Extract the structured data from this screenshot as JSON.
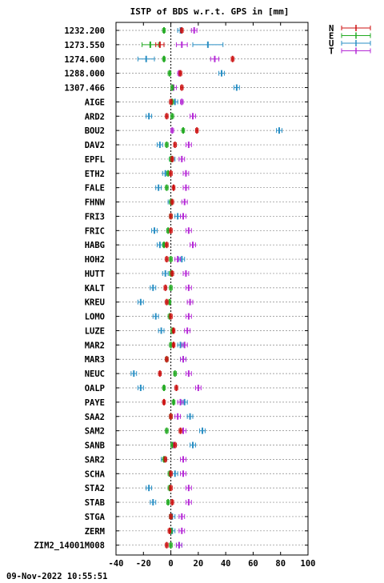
{
  "chart_data": {
    "type": "scatter",
    "title": "ISTP of BDS w.r.t. GPS in [mm]",
    "xlim": [
      -40,
      100
    ],
    "xticks": [
      -40,
      -20,
      0,
      20,
      40,
      60,
      80,
      100
    ],
    "grid": true,
    "legend_position": "top-right",
    "timestamp": "09-Nov-2022 10:55:51",
    "series": [
      {
        "name": "N",
        "color": "#cc1111"
      },
      {
        "name": "E",
        "color": "#22aa22"
      },
      {
        "name": "U",
        "color": "#2a8fc4"
      },
      {
        "name": "T",
        "color": "#b52ad6"
      }
    ],
    "categories": [
      "1232.200",
      "1273.550",
      "1274.600",
      "1288.000",
      "1307.466",
      "AIGE",
      "ARD2",
      "BOU2",
      "DAV2",
      "EPFL",
      "ETH2",
      "FALE",
      "FHNW",
      "FRI3",
      "FRIC",
      "HABG",
      "HOH2",
      "HUTT",
      "KALT",
      "KREU",
      "LOMO",
      "LUZE",
      "MAR2",
      "MAR3",
      "NEUC",
      "OALP",
      "PAYE",
      "SAA2",
      "SAM2",
      "SANB",
      "SAR2",
      "SCHA",
      "STA2",
      "STAB",
      "STGA",
      "ZERM",
      "ZIM2_14001M008"
    ],
    "rows": [
      {
        "N": [
          8,
          1
        ],
        "E": [
          -5,
          1
        ],
        "U": [
          7,
          2
        ],
        "T": [
          17,
          2
        ]
      },
      {
        "N": [
          -8,
          3
        ],
        "E": [
          -15,
          6
        ],
        "U": [
          27,
          11
        ],
        "T": [
          8,
          4
        ]
      },
      {
        "N": [
          45,
          1
        ],
        "E": [
          -5,
          1
        ],
        "U": [
          -18,
          6
        ],
        "T": [
          32,
          3
        ]
      },
      {
        "N": [
          7,
          1
        ],
        "E": [
          -1,
          1
        ],
        "U": [
          37,
          2
        ],
        "T": [
          6,
          1
        ]
      },
      {
        "N": [
          8,
          1
        ],
        "E": [
          1,
          1
        ],
        "U": [
          48,
          2
        ],
        "T": [
          2,
          2
        ]
      },
      {
        "N": [
          0,
          1
        ],
        "E": [
          1,
          1
        ],
        "U": [
          3,
          2
        ],
        "T": [
          8,
          1
        ]
      },
      {
        "N": [
          -3,
          1
        ],
        "E": [
          1,
          1
        ],
        "U": [
          -16,
          2
        ],
        "T": [
          16,
          2
        ]
      },
      {
        "N": [
          19,
          1
        ],
        "E": [
          9,
          1
        ],
        "U": [
          79,
          2
        ],
        "T": [
          1,
          1
        ]
      },
      {
        "N": [
          3,
          1
        ],
        "E": [
          -3,
          1
        ],
        "U": [
          -8,
          2
        ],
        "T": [
          13,
          2
        ]
      },
      {
        "N": [
          1,
          1
        ],
        "E": [
          0,
          1
        ],
        "U": [
          1,
          2
        ],
        "T": [
          8,
          2
        ]
      },
      {
        "N": [
          0,
          1
        ],
        "E": [
          -2,
          1
        ],
        "U": [
          -4,
          2
        ],
        "T": [
          11,
          2
        ]
      },
      {
        "N": [
          2,
          1
        ],
        "E": [
          -3,
          1
        ],
        "U": [
          -9,
          2
        ],
        "T": [
          11,
          2
        ]
      },
      {
        "N": [
          1,
          1
        ],
        "E": [
          0,
          1
        ],
        "U": [
          0,
          2
        ],
        "T": [
          10,
          2
        ]
      },
      {
        "N": [
          0,
          1
        ],
        "E": [
          0,
          1
        ],
        "U": [
          5,
          2
        ],
        "T": [
          9,
          2
        ]
      },
      {
        "N": [
          0,
          1
        ],
        "E": [
          -2,
          1
        ],
        "U": [
          -12,
          2
        ],
        "T": [
          13,
          2
        ]
      },
      {
        "N": [
          -3,
          1
        ],
        "E": [
          -5,
          1
        ],
        "U": [
          -8,
          2
        ],
        "T": [
          16,
          2
        ]
      },
      {
        "N": [
          -3,
          1
        ],
        "E": [
          0,
          1
        ],
        "U": [
          8,
          2
        ],
        "T": [
          5,
          2
        ]
      },
      {
        "N": [
          1,
          1
        ],
        "E": [
          0,
          1
        ],
        "U": [
          -4,
          2
        ],
        "T": [
          11,
          2
        ]
      },
      {
        "N": [
          -4,
          1
        ],
        "E": [
          0,
          1
        ],
        "U": [
          -13,
          2
        ],
        "T": [
          13,
          2
        ]
      },
      {
        "N": [
          -3,
          1
        ],
        "E": [
          -1,
          1
        ],
        "U": [
          -22,
          2
        ],
        "T": [
          14,
          2
        ]
      },
      {
        "N": [
          0,
          1
        ],
        "E": [
          -1,
          1
        ],
        "U": [
          -11,
          2
        ],
        "T": [
          13,
          2
        ]
      },
      {
        "N": [
          2,
          1
        ],
        "E": [
          1,
          1
        ],
        "U": [
          -7,
          2
        ],
        "T": [
          12,
          2
        ]
      },
      {
        "N": [
          2,
          1
        ],
        "E": [
          0,
          1
        ],
        "U": [
          7,
          2
        ],
        "T": [
          10,
          2
        ]
      },
      {
        "N": [
          -3,
          1
        ],
        "E": [
          -3,
          1
        ],
        "U": [
          9,
          2
        ],
        "T": [
          9,
          2
        ]
      },
      {
        "N": [
          -8,
          1
        ],
        "E": [
          3,
          1
        ],
        "U": [
          -27,
          2
        ],
        "T": [
          13,
          2
        ]
      },
      {
        "N": [
          4,
          1
        ],
        "E": [
          -5,
          1
        ],
        "U": [
          -22,
          2
        ],
        "T": [
          20,
          2
        ]
      },
      {
        "N": [
          -5,
          1
        ],
        "E": [
          2,
          1
        ],
        "U": [
          10,
          2
        ],
        "T": [
          7,
          2
        ]
      },
      {
        "N": [
          0,
          1
        ],
        "E": [
          0,
          1
        ],
        "U": [
          14,
          2
        ],
        "T": [
          5,
          2
        ]
      },
      {
        "N": [
          7,
          1
        ],
        "E": [
          -3,
          1
        ],
        "U": [
          23,
          2
        ],
        "T": [
          9,
          2
        ]
      },
      {
        "N": [
          3,
          1
        ],
        "E": [
          1,
          1
        ],
        "U": [
          16,
          2
        ],
        "T": [
          2,
          2
        ]
      },
      {
        "N": [
          -4,
          1
        ],
        "E": [
          -5,
          1
        ],
        "U": [
          -5,
          2
        ],
        "T": [
          9,
          2
        ]
      },
      {
        "N": [
          0,
          1
        ],
        "E": [
          -1,
          1
        ],
        "U": [
          3,
          2
        ],
        "T": [
          9,
          2
        ]
      },
      {
        "N": [
          0,
          1
        ],
        "E": [
          -1,
          1
        ],
        "U": [
          -16,
          2
        ],
        "T": [
          13,
          2
        ]
      },
      {
        "N": [
          1,
          1
        ],
        "E": [
          -2,
          1
        ],
        "U": [
          -13,
          2
        ],
        "T": [
          13,
          2
        ]
      },
      {
        "N": [
          0,
          1
        ],
        "E": [
          0,
          1
        ],
        "U": [
          1,
          2
        ],
        "T": [
          8,
          2
        ]
      },
      {
        "N": [
          -1,
          1
        ],
        "E": [
          0,
          1
        ],
        "U": [
          1,
          2
        ],
        "T": [
          8,
          2
        ]
      },
      {
        "N": [
          -3,
          1
        ],
        "E": [
          0,
          1
        ],
        "U": [
          6,
          2
        ],
        "T": [
          6,
          2
        ]
      }
    ]
  }
}
